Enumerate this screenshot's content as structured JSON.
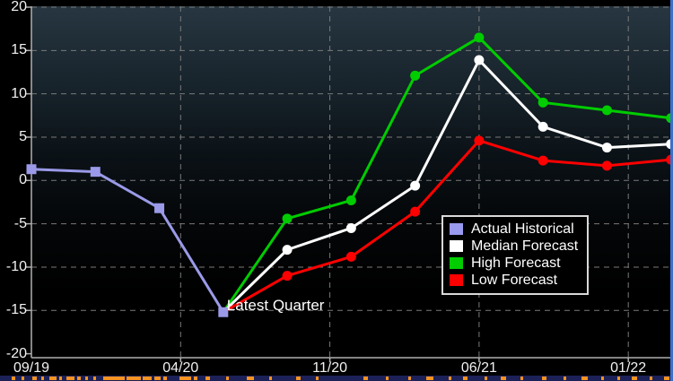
{
  "annotation": {
    "text": "Latest Quarter",
    "x_month": 9,
    "value": -15.2
  },
  "legend": {
    "items": [
      {
        "label": "Actual Historical",
        "color": "#9999ee"
      },
      {
        "label": "Median Forecast",
        "color": "#ffffff"
      },
      {
        "label": "High Forecast",
        "color": "#00cc00"
      },
      {
        "label": "Low Forecast",
        "color": "#ff0000"
      }
    ]
  },
  "chart_data": {
    "type": "line",
    "title": "",
    "xlabel": "",
    "ylabel": "",
    "ylim": [
      -20,
      20
    ],
    "grid": "dashed",
    "legend_position": "center-right",
    "y_ticks": [
      20,
      15,
      10,
      5,
      0,
      -5,
      -10,
      -15,
      -20
    ],
    "x_ticks": [
      {
        "label": "09/19",
        "month": 0
      },
      {
        "label": "04/20",
        "month": 7
      },
      {
        "label": "11/20",
        "month": 14
      },
      {
        "label": "06/21",
        "month": 21
      },
      {
        "label": "01/22",
        "month": 28
      }
    ],
    "x_months_total": 30,
    "series": [
      {
        "name": "High Forecast",
        "color": "#00cc00",
        "marker": "circle",
        "skip_first_marker": true,
        "x_months": [
          9,
          12,
          15,
          18,
          21,
          24,
          27,
          30
        ],
        "values": [
          -15.2,
          -4.4,
          -2.3,
          12.1,
          16.5,
          9.0,
          8.1,
          7.2
        ]
      },
      {
        "name": "Median Forecast",
        "color": "#ffffff",
        "marker": "circle",
        "skip_first_marker": true,
        "x_months": [
          9,
          12,
          15,
          18,
          21,
          24,
          27,
          30
        ],
        "values": [
          -15.2,
          -8.0,
          -5.5,
          -0.6,
          13.9,
          6.2,
          3.8,
          4.2
        ]
      },
      {
        "name": "Low Forecast",
        "color": "#ff0000",
        "marker": "circle",
        "skip_first_marker": true,
        "x_months": [
          9,
          12,
          15,
          18,
          21,
          24,
          27,
          30
        ],
        "values": [
          -15.2,
          -11.0,
          -8.8,
          -3.6,
          4.6,
          2.3,
          1.7,
          2.4
        ]
      },
      {
        "name": "Actual Historical",
        "color": "#9a9ae8",
        "marker": "square",
        "skip_first_marker": false,
        "x_months": [
          0,
          3,
          6,
          9
        ],
        "values": [
          1.3,
          1.0,
          -3.2,
          -15.2
        ]
      }
    ]
  },
  "footer": {
    "bar_color": "#1c2157",
    "mark_color": "#f79320",
    "marks": [
      [
        13,
        4
      ],
      [
        24,
        3
      ],
      [
        36,
        5
      ],
      [
        46,
        3
      ],
      [
        55,
        8
      ],
      [
        66,
        3
      ],
      [
        74,
        9
      ],
      [
        86,
        4
      ],
      [
        95,
        3
      ],
      [
        104,
        3
      ],
      [
        115,
        24
      ],
      [
        141,
        16
      ],
      [
        159,
        10
      ],
      [
        172,
        7
      ],
      [
        182,
        4
      ],
      [
        200,
        13
      ],
      [
        216,
        4
      ],
      [
        229,
        5
      ],
      [
        252,
        3
      ],
      [
        275,
        8
      ],
      [
        300,
        3
      ],
      [
        330,
        5
      ],
      [
        352,
        3
      ],
      [
        405,
        5
      ],
      [
        430,
        3
      ],
      [
        455,
        3
      ],
      [
        475,
        8
      ],
      [
        500,
        3
      ],
      [
        516,
        5
      ],
      [
        540,
        3
      ],
      [
        558,
        6
      ],
      [
        580,
        3
      ],
      [
        604,
        5
      ],
      [
        628,
        3
      ],
      [
        648,
        7
      ],
      [
        670,
        3
      ],
      [
        688,
        3
      ],
      [
        704,
        6
      ],
      [
        724,
        3
      ],
      [
        740,
        6
      ]
    ]
  }
}
